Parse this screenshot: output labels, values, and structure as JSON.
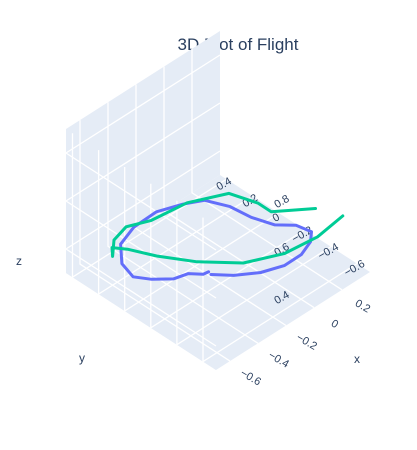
{
  "chart_data": {
    "type": "line3d",
    "title": "3D Plot of Flight",
    "axes": {
      "x": {
        "label": "x",
        "ticks": [
          -0.6,
          -0.4,
          -0.2,
          0,
          0.2
        ],
        "tick_labels": [
          "−0.6",
          "−0.4",
          "−0.2",
          "0",
          "0.2"
        ],
        "range": [
          -0.7,
          0.4
        ]
      },
      "y": {
        "label": "y",
        "ticks": [
          -0.6,
          -0.4,
          -0.2,
          0,
          0.2,
          0.4
        ],
        "tick_labels": [
          "−0.6",
          "−0.4",
          "−0.2",
          "0",
          "0.2",
          "0.4"
        ],
        "range": [
          -0.7,
          0.45
        ]
      },
      "z": {
        "label": "z",
        "ticks": [
          0.4,
          0.6,
          0.8
        ],
        "tick_labels": [
          "0.4",
          "0.6",
          "0.8"
        ],
        "range": [
          0.3,
          0.9
        ]
      }
    },
    "grid": true,
    "series": [
      {
        "color": "#636efa",
        "x": [
          -0.4,
          -0.35,
          -0.25,
          -0.1,
          0.05,
          0.18,
          0.28,
          0.3,
          0.28,
          0.25,
          0.22,
          0.15,
          0.05,
          -0.1,
          -0.28,
          -0.45,
          -0.58,
          -0.64,
          -0.6,
          -0.52,
          -0.45,
          -0.4,
          -0.38
        ],
        "y": [
          -0.34,
          -0.46,
          -0.56,
          -0.58,
          -0.55,
          -0.48,
          -0.38,
          -0.24,
          -0.1,
          0.05,
          0.18,
          0.3,
          0.36,
          0.4,
          0.38,
          0.3,
          0.15,
          0.0,
          -0.1,
          -0.18,
          -0.22,
          -0.28,
          -0.3
        ],
        "z": [
          0.46,
          0.48,
          0.49,
          0.47,
          0.45,
          0.43,
          0.4,
          0.37,
          0.33,
          0.32,
          0.33,
          0.34,
          0.34,
          0.35,
          0.36,
          0.38,
          0.4,
          0.42,
          0.43,
          0.43,
          0.44,
          0.44,
          0.45
        ]
      },
      {
        "color": "#00cc96",
        "x": [
          0.28,
          0.1,
          -0.1,
          -0.3,
          -0.5,
          -0.64,
          -0.68,
          -0.66,
          -0.6,
          -0.45,
          -0.28,
          -0.1,
          0.1,
          0.25,
          0.3,
          0.3,
          0.29
        ],
        "y": [
          -0.62,
          -0.62,
          -0.58,
          -0.48,
          -0.34,
          -0.18,
          0.0,
          0.14,
          0.2,
          0.35,
          0.44,
          0.44,
          0.38,
          0.22,
          0.05,
          -0.05,
          -0.4
        ],
        "z": [
          0.55,
          0.53,
          0.52,
          0.52,
          0.55,
          0.57,
          0.55,
          0.5,
          0.42,
          0.38,
          0.34,
          0.3,
          0.32,
          0.36,
          0.36,
          0.36,
          0.5
        ]
      }
    ]
  }
}
